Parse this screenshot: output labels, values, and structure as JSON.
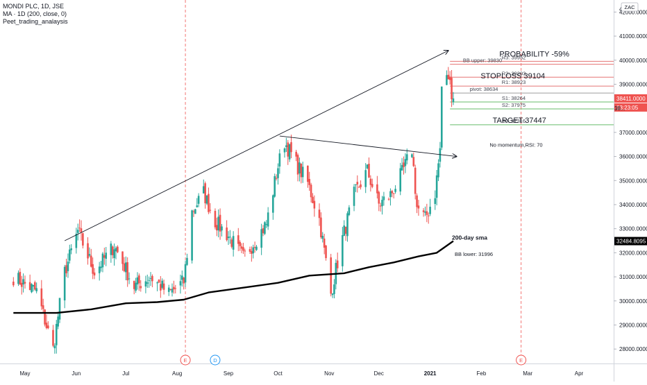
{
  "legend": {
    "symbol": "MONDI PLC, 1D, JSE",
    "ma": "MA · 1D (200, close, 0)",
    "script": "Peet_trading_analaysis"
  },
  "currency_badge": "ZAC",
  "colors": {
    "up": "#26a69a",
    "down": "#ef5350",
    "sma": "#000000",
    "level_red": "#e57373",
    "level_green": "#66bb6a",
    "level_gray": "#9e9e9e",
    "vline": "#ef5350",
    "last_price_bg": "#ef5350",
    "sma_badge_bg": "#000000"
  },
  "price_badges": {
    "last": "38411.0000",
    "countdown": "03:23:05",
    "sma": "32484.8095",
    "above_top": "42...",
    "next_price": "38..."
  },
  "chart_data": {
    "type": "candlestick",
    "x_ticks": [
      "May",
      "Jun",
      "Jul",
      "Aug",
      "Sep",
      "Oct",
      "Nov",
      "Dec",
      "2021",
      "Feb",
      "Mar",
      "Apr"
    ],
    "y_ticks": [
      28000,
      29000,
      30000,
      31000,
      32000,
      33000,
      34000,
      35000,
      36000,
      37000,
      38000,
      39000,
      40000,
      41000,
      42000
    ],
    "y_range": [
      27400,
      42500
    ],
    "price_path": [
      [
        "2020-04-24",
        31000
      ],
      [
        "2020-05-08",
        30400
      ],
      [
        "2020-05-18",
        28000
      ],
      [
        "2020-05-25",
        31200
      ],
      [
        "2020-06-02",
        32900
      ],
      [
        "2020-06-12",
        31200
      ],
      [
        "2020-06-24",
        32300
      ],
      [
        "2020-07-06",
        30600
      ],
      [
        "2020-07-16",
        31000
      ],
      [
        "2020-07-27",
        30300
      ],
      [
        "2020-08-05",
        30800
      ],
      [
        "2020-08-10",
        33700
      ],
      [
        "2020-08-17",
        34500
      ],
      [
        "2020-08-24",
        33300
      ],
      [
        "2020-09-01",
        32700
      ],
      [
        "2020-09-10",
        31800
      ],
      [
        "2020-09-24",
        33200
      ],
      [
        "2020-10-01",
        35600
      ],
      [
        "2020-10-05",
        36600
      ],
      [
        "2020-10-12",
        35700
      ],
      [
        "2020-10-19",
        34900
      ],
      [
        "2020-10-26",
        33400
      ],
      [
        "2020-11-02",
        30300
      ],
      [
        "2020-11-09",
        32600
      ],
      [
        "2020-11-16",
        34400
      ],
      [
        "2020-11-24",
        35400
      ],
      [
        "2020-12-01",
        34000
      ],
      [
        "2020-12-08",
        34400
      ],
      [
        "2020-12-15",
        35300
      ],
      [
        "2020-12-21",
        36300
      ],
      [
        "2020-12-24",
        33900
      ],
      [
        "2020-12-29",
        33400
      ],
      [
        "2021-01-04",
        34500
      ],
      [
        "2021-01-07",
        36300
      ],
      [
        "2021-01-08",
        38900
      ],
      [
        "2021-01-12",
        39300
      ],
      [
        "2021-01-15",
        38411
      ]
    ],
    "sma_200": [
      [
        "2020-04-24",
        29500
      ],
      [
        "2020-05-20",
        29500
      ],
      [
        "2020-06-10",
        29650
      ],
      [
        "2020-07-01",
        29900
      ],
      [
        "2020-07-20",
        29950
      ],
      [
        "2020-08-05",
        30050
      ],
      [
        "2020-08-20",
        30350
      ],
      [
        "2020-09-10",
        30550
      ],
      [
        "2020-10-01",
        30750
      ],
      [
        "2020-10-20",
        31050
      ],
      [
        "2020-11-10",
        31150
      ],
      [
        "2020-11-25",
        31400
      ],
      [
        "2020-12-10",
        31600
      ],
      [
        "2020-12-25",
        31850
      ],
      [
        "2021-01-05",
        32000
      ],
      [
        "2021-01-15",
        32484.8095
      ]
    ],
    "horizontal_levels": [
      {
        "name": "R3",
        "value": 39952,
        "text": "R3: 39952",
        "color": "red"
      },
      {
        "name": "BB upper",
        "value": 39830,
        "text": "BB upper: 39830",
        "color": "red"
      },
      {
        "name": "R2",
        "value": 39293,
        "text": "R2: 39293",
        "color": "red"
      },
      {
        "name": "R1",
        "value": 38923,
        "text": "R1: 38923",
        "color": "red"
      },
      {
        "name": "pivot",
        "value": 38634,
        "text": "pivot: 38634",
        "color": "gray"
      },
      {
        "name": "S1",
        "value": 38264,
        "text": "S1: 38264",
        "color": "green"
      },
      {
        "name": "S2",
        "value": 37975,
        "text": "S2: 37975",
        "color": "green"
      },
      {
        "name": "S3",
        "value": 37316,
        "text": "S3: 37316",
        "color": "green"
      }
    ],
    "annotations": [
      {
        "text": "PROBABILITY -59%",
        "date": "2021-03-05",
        "price": 40150
      },
      {
        "text": "STOPLOSS 39104",
        "date": "2021-02-20",
        "price": 39250
      },
      {
        "text": "TARGET 37447",
        "date": "2021-02-24",
        "price": 37400
      },
      {
        "text": "No momentum,RSI: 70",
        "date": "2021-02-22",
        "price": 36400
      },
      {
        "text": "200-day sma",
        "date": "2020-12-01",
        "price": 32550
      },
      {
        "text": "BB lower: 31996",
        "date": "2020-12-01",
        "price": 31870
      }
    ],
    "trendlines": [
      {
        "from": [
          "2020-05-25",
          32500
        ],
        "to": [
          "2021-01-12",
          40400
        ],
        "arrow": true
      },
      {
        "from": [
          "2020-10-02",
          36850
        ],
        "to": [
          "2021-01-17",
          36000
        ],
        "arrow": true
      }
    ],
    "event_vlines": [
      "2020-08-06",
      "2021-02-25"
    ],
    "event_markers": [
      {
        "text": "E",
        "date": "2020-08-06"
      },
      {
        "text": "D",
        "date": "2020-08-24"
      },
      {
        "text": "E",
        "date": "2021-02-25"
      }
    ]
  }
}
